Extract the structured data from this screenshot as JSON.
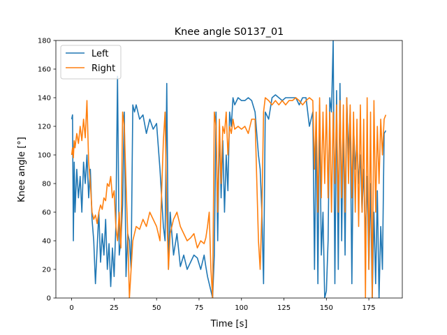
{
  "chart_data": {
    "type": "line",
    "title": "Knee angle S0137_01",
    "xlabel": "Time [s]",
    "ylabel": "Knee angle [°]",
    "xlim": [
      -9.3,
      194.7
    ],
    "ylim": [
      0,
      180
    ],
    "xticks": [
      0,
      25,
      50,
      75,
      100,
      125,
      150,
      175
    ],
    "yticks": [
      0,
      20,
      40,
      60,
      80,
      100,
      120,
      140,
      160,
      180
    ],
    "grid": false,
    "legend": "upper left",
    "series": [
      {
        "name": "Left",
        "color": "#1f77b4",
        "x": [
          0,
          0.5,
          1,
          1.5,
          2,
          3,
          4,
          5,
          6,
          7,
          8,
          9,
          10,
          11,
          12,
          13,
          14,
          15,
          16,
          17,
          18,
          19,
          20,
          21,
          22,
          23,
          24,
          25,
          26,
          27,
          28,
          29,
          30,
          31,
          32,
          33,
          34,
          35,
          36,
          37,
          38,
          40,
          42,
          44,
          46,
          48,
          50,
          52,
          54,
          55,
          56,
          57,
          58,
          60,
          62,
          64,
          66,
          68,
          70,
          72,
          74,
          76,
          78,
          79,
          80,
          81,
          82,
          83,
          84,
          85,
          86,
          87,
          88,
          89,
          90,
          91,
          92,
          93,
          94,
          95,
          96,
          98,
          100,
          102,
          104,
          106,
          108,
          110,
          111,
          112,
          113,
          114,
          116,
          118,
          120,
          122,
          124,
          126,
          128,
          130,
          132,
          134,
          136,
          138,
          140,
          142,
          143,
          144,
          145,
          146,
          147,
          148,
          149,
          150,
          151,
          152,
          153,
          154,
          155,
          156,
          157,
          158,
          159,
          160,
          161,
          162,
          163,
          164,
          165,
          166,
          167,
          168,
          169,
          170,
          171,
          172,
          173,
          174,
          175,
          176,
          177,
          178,
          179,
          180,
          181,
          182,
          183,
          184,
          185
        ],
        "values": [
          125,
          128,
          40,
          95,
          60,
          90,
          70,
          85,
          60,
          95,
          80,
          100,
          70,
          90,
          55,
          40,
          10,
          35,
          60,
          25,
          45,
          30,
          55,
          20,
          38,
          8,
          35,
          15,
          50,
          155,
          30,
          40,
          65,
          130,
          15,
          45,
          40,
          20,
          135,
          130,
          135,
          125,
          128,
          115,
          125,
          118,
          122,
          90,
          50,
          40,
          150,
          20,
          60,
          30,
          45,
          22,
          30,
          20,
          25,
          30,
          28,
          20,
          30,
          22,
          15,
          10,
          5,
          0,
          30,
          130,
          40,
          120,
          70,
          110,
          60,
          100,
          75,
          130,
          120,
          140,
          135,
          140,
          138,
          138,
          140,
          138,
          130,
          100,
          90,
          60,
          10,
          130,
          125,
          140,
          142,
          140,
          138,
          140,
          140,
          140,
          140,
          135,
          140,
          140,
          120,
          130,
          20,
          125,
          10,
          135,
          30,
          60,
          0,
          5,
          40,
          140,
          130,
          180,
          10,
          145,
          20,
          150,
          40,
          125,
          30,
          140,
          100,
          130,
          10,
          120,
          90,
          110,
          80,
          100,
          60,
          90,
          40,
          85,
          20,
          80,
          0,
          60,
          10,
          75,
          0,
          50,
          20,
          115,
          117
        ]
      },
      {
        "name": "Right",
        "color": "#ff7f0e",
        "x": [
          0,
          0.5,
          1,
          1.5,
          2,
          3,
          4,
          5,
          6,
          7,
          8,
          9,
          10,
          11,
          12,
          13,
          14,
          15,
          16,
          17,
          18,
          19,
          20,
          21,
          22,
          23,
          24,
          25,
          26,
          27,
          28,
          29,
          30,
          31,
          32,
          33,
          34,
          35,
          36,
          37,
          38,
          40,
          42,
          44,
          46,
          48,
          50,
          52,
          54,
          55,
          56,
          57,
          58,
          60,
          62,
          64,
          66,
          68,
          70,
          72,
          74,
          76,
          78,
          79,
          80,
          81,
          82,
          83,
          84,
          85,
          86,
          87,
          88,
          89,
          90,
          91,
          92,
          93,
          94,
          95,
          96,
          98,
          100,
          102,
          104,
          106,
          108,
          110,
          111,
          112,
          113,
          114,
          116,
          118,
          120,
          122,
          124,
          126,
          128,
          130,
          132,
          134,
          136,
          138,
          140,
          142,
          143,
          144,
          145,
          146,
          147,
          148,
          149,
          150,
          151,
          152,
          153,
          154,
          155,
          156,
          157,
          158,
          159,
          160,
          161,
          162,
          163,
          164,
          165,
          166,
          167,
          168,
          169,
          170,
          171,
          172,
          173,
          174,
          175,
          176,
          177,
          178,
          179,
          180,
          181,
          182,
          183,
          184,
          185
        ],
        "values": [
          100,
          105,
          98,
          110,
          105,
          115,
          108,
          120,
          110,
          125,
          112,
          138,
          95,
          80,
          60,
          55,
          58,
          52,
          60,
          65,
          62,
          70,
          68,
          80,
          78,
          85,
          70,
          75,
          50,
          40,
          60,
          35,
          130,
          120,
          80,
          45,
          0,
          20,
          40,
          45,
          50,
          48,
          55,
          50,
          60,
          55,
          50,
          40,
          110,
          130,
          60,
          20,
          45,
          55,
          60,
          50,
          45,
          40,
          42,
          45,
          35,
          40,
          38,
          42,
          50,
          60,
          20,
          0,
          130,
          120,
          60,
          125,
          80,
          120,
          115,
          130,
          100,
          120,
          115,
          125,
          118,
          120,
          118,
          120,
          115,
          125,
          125,
          40,
          20,
          60,
          130,
          140,
          138,
          135,
          138,
          135,
          138,
          135,
          138,
          138,
          140,
          138,
          135,
          138,
          140,
          138,
          90,
          130,
          60,
          140,
          70,
          130,
          80,
          135,
          70,
          130,
          60,
          130,
          80,
          135,
          60,
          138,
          70,
          135,
          60,
          140,
          80,
          135,
          70,
          130,
          60,
          125,
          50,
          135,
          60,
          125,
          0,
          140,
          20,
          130,
          0,
          138,
          60,
          120,
          80,
          125,
          100,
          125,
          128
        ]
      }
    ]
  }
}
